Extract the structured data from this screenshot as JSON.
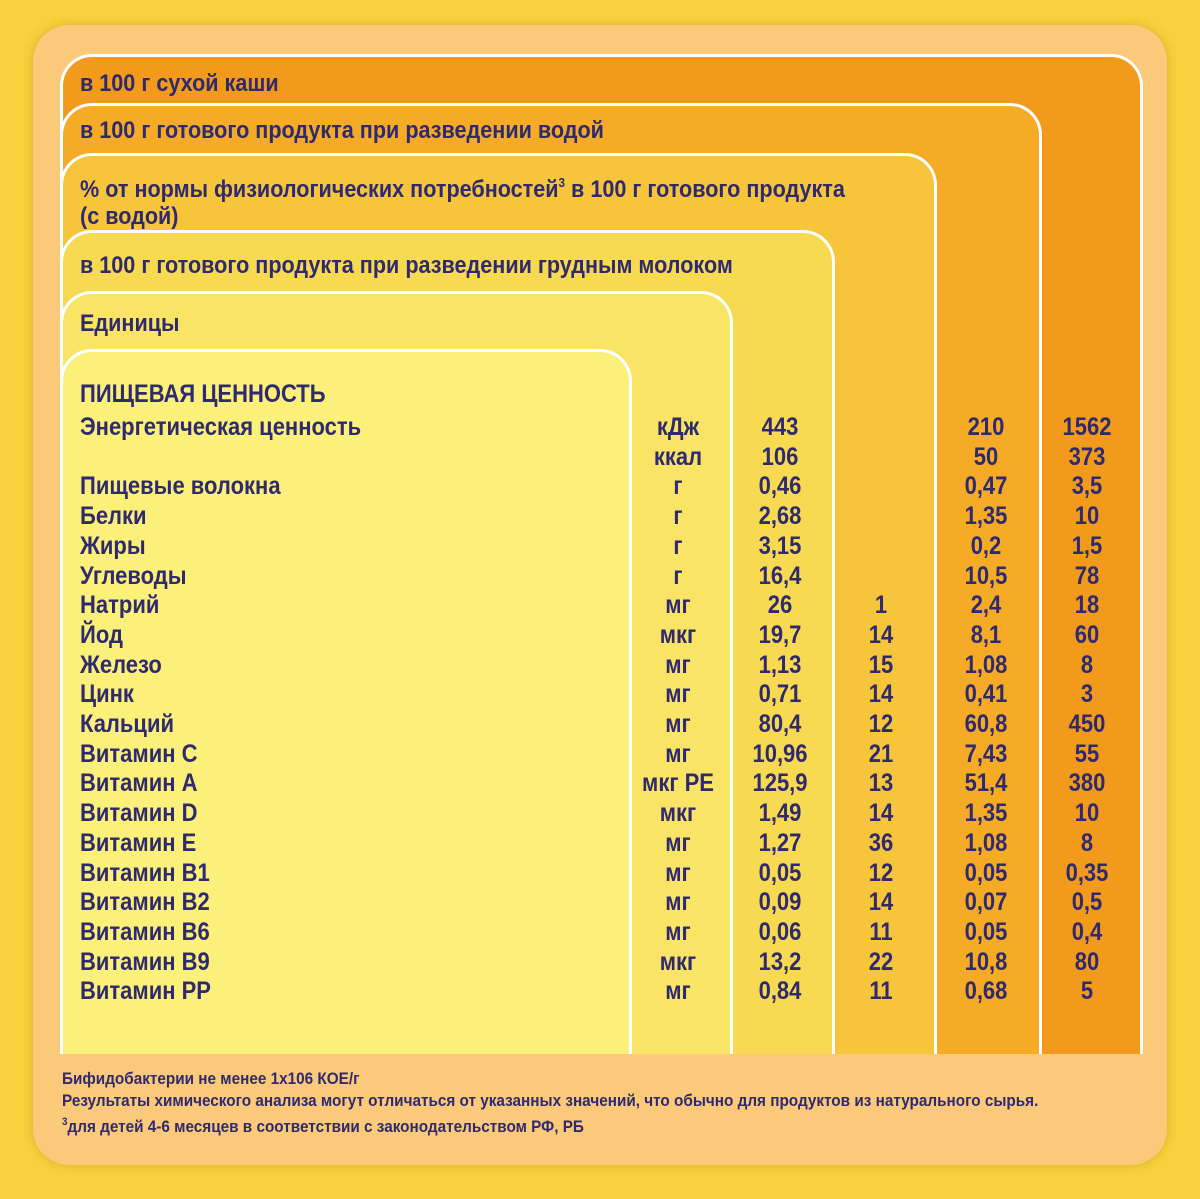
{
  "headers": {
    "dry": "в 100 г сухой каши",
    "water": "в 100 г готового продукта при разведении водой",
    "pct_line1": "% от нормы физиологических потребностей",
    "pct_sup": "3",
    "pct_line1_end": " в 100 г готового продукта",
    "pct_line2": "(с водой)",
    "breast": "в 100 г готового продукта при разведении грудным молоком",
    "units": "Единицы"
  },
  "section_title": "ПИЩЕВАЯ ЦЕННОСТЬ",
  "rows": [
    {
      "name": "Энергетическая ценность",
      "unit": "кДж",
      "breast": "443",
      "pct": "",
      "water": "210",
      "dry": "1562"
    },
    {
      "name": "",
      "unit": "ккал",
      "breast": "106",
      "pct": "",
      "water": "50",
      "dry": "373"
    },
    {
      "name": "Пищевые волокна",
      "unit": "г",
      "breast": "0,46",
      "pct": "",
      "water": "0,47",
      "dry": "3,5"
    },
    {
      "name": "Белки",
      "unit": "г",
      "breast": "2,68",
      "pct": "",
      "water": "1,35",
      "dry": "10"
    },
    {
      "name": "Жиры",
      "unit": "г",
      "breast": "3,15",
      "pct": "",
      "water": "0,2",
      "dry": "1,5"
    },
    {
      "name": "Углеводы",
      "unit": "г",
      "breast": "16,4",
      "pct": "",
      "water": "10,5",
      "dry": "78"
    },
    {
      "name": "Натрий",
      "unit": "мг",
      "breast": "26",
      "pct": "1",
      "water": "2,4",
      "dry": "18"
    },
    {
      "name": "Йод",
      "unit": "мкг",
      "breast": "19,7",
      "pct": "14",
      "water": "8,1",
      "dry": "60"
    },
    {
      "name": "Железо",
      "unit": "мг",
      "breast": "1,13",
      "pct": "15",
      "water": "1,08",
      "dry": "8"
    },
    {
      "name": "Цинк",
      "unit": "мг",
      "breast": "0,71",
      "pct": "14",
      "water": "0,41",
      "dry": "3"
    },
    {
      "name": "Кальций",
      "unit": "мг",
      "breast": "80,4",
      "pct": "12",
      "water": "60,8",
      "dry": "450"
    },
    {
      "name": "Витамин  С",
      "unit": "мг",
      "breast": "10,96",
      "pct": "21",
      "water": "7,43",
      "dry": "55"
    },
    {
      "name": "Витамин  А",
      "unit": "мкг РЕ",
      "breast": "125,9",
      "pct": "13",
      "water": "51,4",
      "dry": "380"
    },
    {
      "name": "Витамин  D",
      "unit": "мкг",
      "breast": "1,49",
      "pct": "14",
      "water": "1,35",
      "dry": "10"
    },
    {
      "name": "Витамин  Е",
      "unit": "мг",
      "breast": "1,27",
      "pct": "36",
      "water": "1,08",
      "dry": "8"
    },
    {
      "name": "Витамин  В1",
      "unit": "мг",
      "breast": "0,05",
      "pct": "12",
      "water": "0,05",
      "dry": "0,35"
    },
    {
      "name": "Витамин  В2",
      "unit": "мг",
      "breast": "0,09",
      "pct": "14",
      "water": "0,07",
      "dry": "0,5"
    },
    {
      "name": "Витамин  В6",
      "unit": "мг",
      "breast": "0,06",
      "pct": "11",
      "water": "0,05",
      "dry": "0,4"
    },
    {
      "name": "Витамин  В9",
      "unit": "мкг",
      "breast": "13,2",
      "pct": "22",
      "water": "10,8",
      "dry": "80"
    },
    {
      "name": "Витамин  РР",
      "unit": "мг",
      "breast": "0,84",
      "pct": "11",
      "water": "0,68",
      "dry": "5"
    }
  ],
  "footer": {
    "line1": "Бифидобактерии не менее 1х106 КОЕ/г",
    "line2": "Результаты химического анализа могут отличаться от указанных значений, что обычно для продуктов из натурального сырья.",
    "line3_sup": "3",
    "line3": "для детей 4-6 месяцев в соответствии с законодательством РФ, РБ"
  },
  "colors": {
    "background": "#f7d23c",
    "card": "#fbc97a",
    "panel_dry": "#f29a1c",
    "panel_water": "#f5ab26",
    "panel_pct": "#f7c53b",
    "panel_breast": "#f8da52",
    "panel_units": "#f9e466",
    "panel_names": "#fbf07a",
    "text": "#2f2a6e"
  }
}
